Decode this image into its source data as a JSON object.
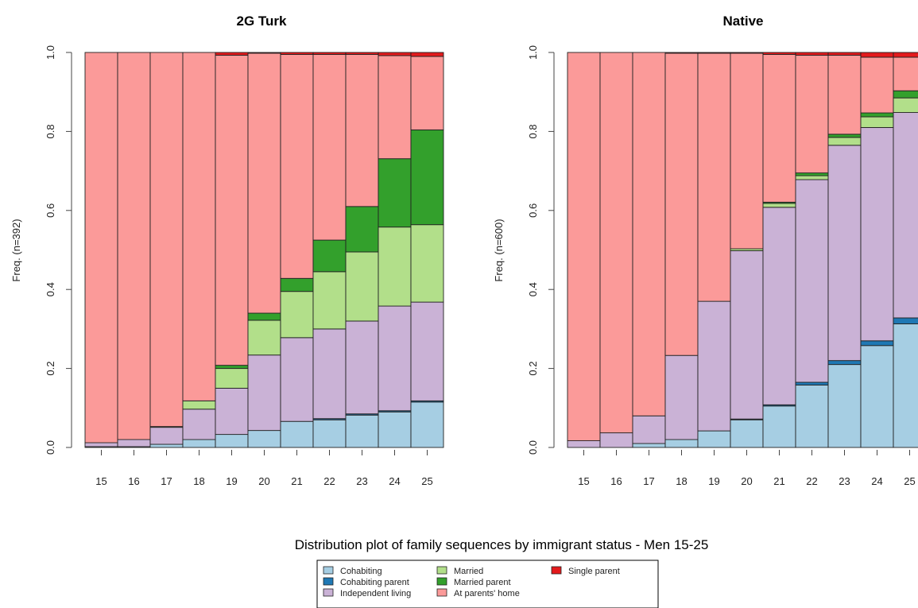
{
  "caption": "Distribution plot of family sequences by immigrant status - Men 15-25",
  "states": [
    {
      "name": "Cohabiting",
      "color": "#a6cee3"
    },
    {
      "name": "Cohabiting parent",
      "color": "#1f78b4"
    },
    {
      "name": "Independent living",
      "color": "#cab2d6"
    },
    {
      "name": "Married",
      "color": "#b2df8a"
    },
    {
      "name": "Married parent",
      "color": "#33a02c"
    },
    {
      "name": "At parents' home",
      "color": "#fb9a99"
    },
    {
      "name": "Single parent",
      "color": "#e31a1c"
    }
  ],
  "legend_order": [
    [
      0,
      1,
      2
    ],
    [
      3,
      4,
      5
    ],
    [
      6
    ]
  ],
  "chart_data": [
    {
      "type": "bar",
      "stacked": true,
      "title": "2G Turk",
      "ylabel": "Freq. (n=392)",
      "ylim": [
        0,
        1
      ],
      "yticks": [
        "0.0",
        "0.2",
        "0.4",
        "0.6",
        "0.8",
        "1.0"
      ],
      "categories": [
        "15",
        "16",
        "17",
        "18",
        "19",
        "20",
        "21",
        "22",
        "23",
        "24",
        "25"
      ],
      "series": [
        {
          "name": "Cohabiting",
          "values": [
            0.002,
            0.002,
            0.008,
            0.02,
            0.033,
            0.043,
            0.066,
            0.07,
            0.082,
            0.09,
            0.115
          ]
        },
        {
          "name": "Cohabiting parent",
          "values": [
            0,
            0,
            0,
            0,
            0,
            0,
            0,
            0.003,
            0.003,
            0.003,
            0.003
          ]
        },
        {
          "name": "Independent living",
          "values": [
            0.01,
            0.018,
            0.043,
            0.077,
            0.117,
            0.191,
            0.212,
            0.227,
            0.235,
            0.265,
            0.25
          ]
        },
        {
          "name": "Married",
          "values": [
            0,
            0,
            0.002,
            0.021,
            0.05,
            0.088,
            0.117,
            0.145,
            0.175,
            0.2,
            0.196
          ]
        },
        {
          "name": "Married parent",
          "values": [
            0,
            0,
            0,
            0,
            0.008,
            0.018,
            0.033,
            0.08,
            0.115,
            0.173,
            0.24
          ]
        },
        {
          "name": "At parents' home",
          "values": [
            0.988,
            0.98,
            0.947,
            0.882,
            0.785,
            0.658,
            0.567,
            0.47,
            0.385,
            0.261,
            0.186
          ]
        },
        {
          "name": "Single parent",
          "values": [
            0,
            0,
            0,
            0,
            0.007,
            0.002,
            0.005,
            0.005,
            0.005,
            0.008,
            0.01
          ]
        }
      ]
    },
    {
      "type": "bar",
      "stacked": true,
      "title": "Native",
      "ylabel": "Freq. (n=600)",
      "ylim": [
        0,
        1
      ],
      "yticks": [
        "0.0",
        "0.2",
        "0.4",
        "0.6",
        "0.8",
        "1.0"
      ],
      "categories": [
        "15",
        "16",
        "17",
        "18",
        "19",
        "20",
        "21",
        "22",
        "23",
        "24",
        "25"
      ],
      "series": [
        {
          "name": "Cohabiting",
          "values": [
            0,
            0,
            0.01,
            0.02,
            0.042,
            0.07,
            0.105,
            0.158,
            0.21,
            0.258,
            0.313
          ]
        },
        {
          "name": "Cohabiting parent",
          "values": [
            0,
            0,
            0,
            0,
            0,
            0.002,
            0.003,
            0.007,
            0.01,
            0.012,
            0.015
          ]
        },
        {
          "name": "Independent living",
          "values": [
            0.017,
            0.037,
            0.07,
            0.213,
            0.328,
            0.426,
            0.5,
            0.513,
            0.545,
            0.54,
            0.52
          ]
        },
        {
          "name": "Married",
          "values": [
            0,
            0,
            0,
            0,
            0,
            0.005,
            0.01,
            0.01,
            0.02,
            0.027,
            0.037
          ]
        },
        {
          "name": "Married parent",
          "values": [
            0,
            0,
            0,
            0,
            0,
            0,
            0.003,
            0.007,
            0.008,
            0.01,
            0.018
          ]
        },
        {
          "name": "At parents' home",
          "values": [
            0.983,
            0.963,
            0.92,
            0.765,
            0.628,
            0.495,
            0.374,
            0.298,
            0.2,
            0.141,
            0.085
          ]
        },
        {
          "name": "Single parent",
          "values": [
            0,
            0,
            0,
            0.002,
            0.002,
            0.002,
            0.005,
            0.007,
            0.007,
            0.012,
            0.012
          ]
        }
      ]
    }
  ]
}
